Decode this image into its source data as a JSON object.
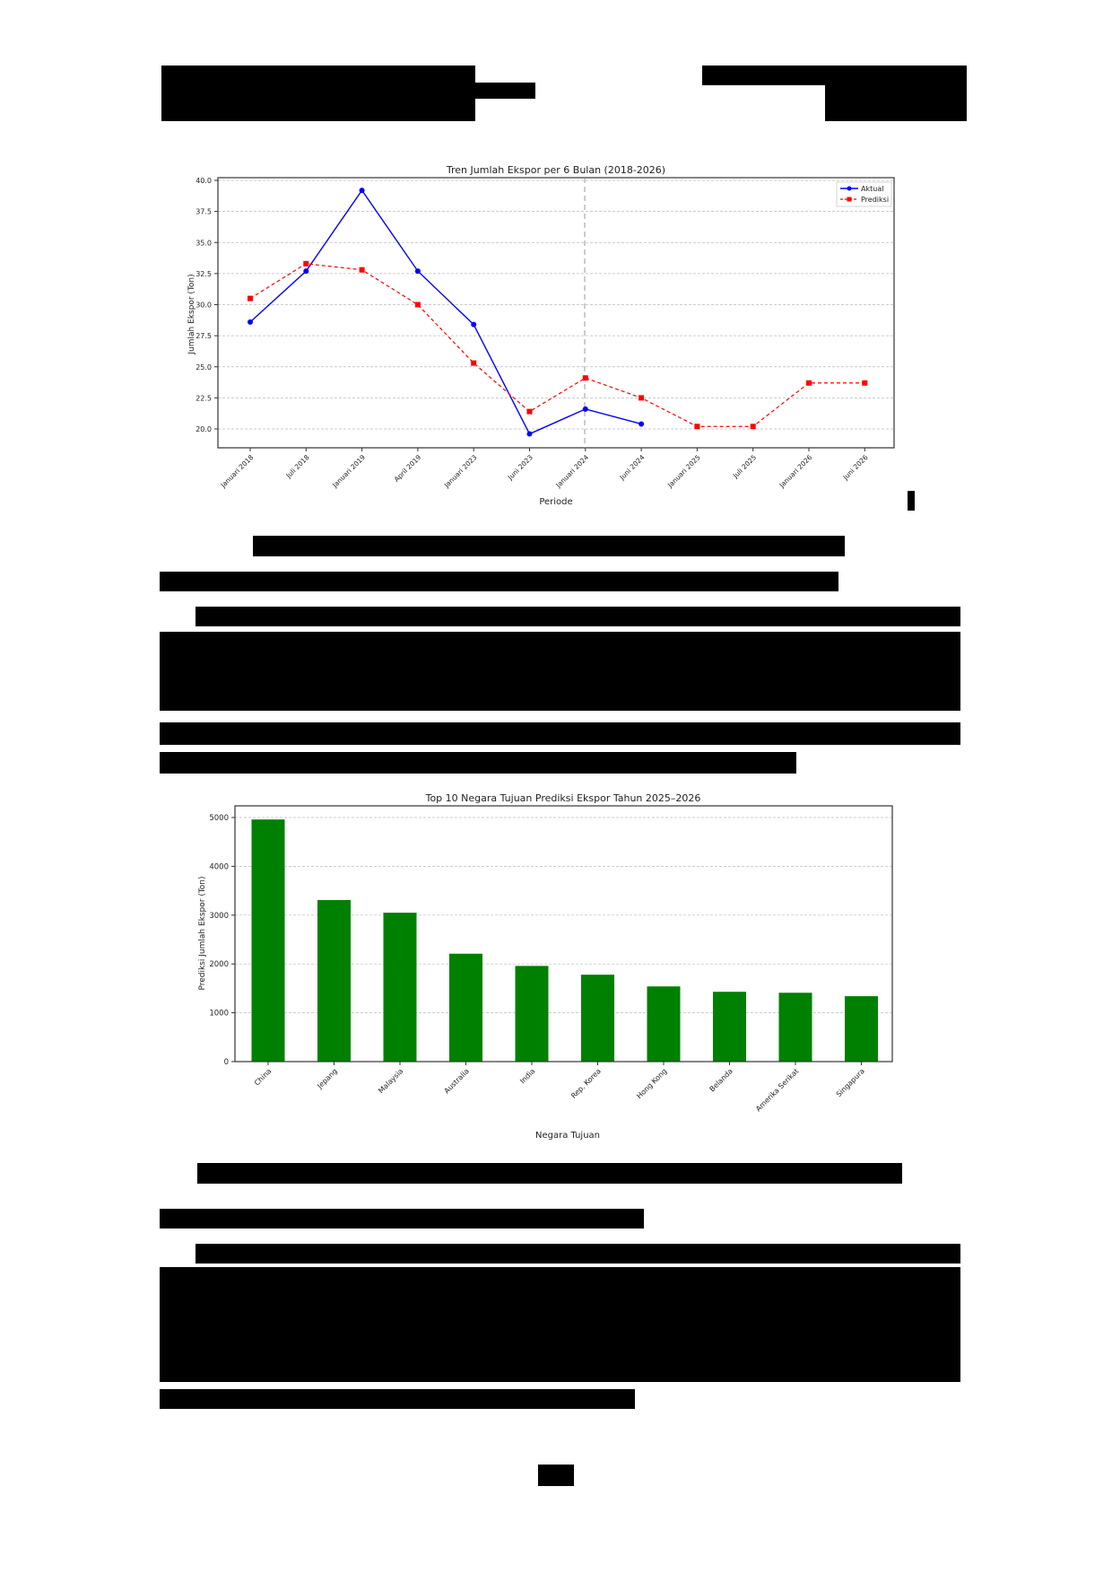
{
  "page": {
    "header_left": "[redacted]",
    "header_right": "[redacted]",
    "figure1_marker": "1",
    "caption1": "[redacted]",
    "section_heading1": "[redacted]",
    "paragraph1": "[redacted]",
    "caption2": "[redacted]",
    "section_heading2": "[redacted]",
    "paragraph2": "[redacted]",
    "page_number": "[redacted]"
  },
  "colors": {
    "actual_line": "#0000ff",
    "predicted_line": "#ff0000",
    "bar_fill": "#008000",
    "grid": "#cccccc",
    "redaction": "#000000"
  },
  "chart_data": [
    {
      "type": "line",
      "title": "Tren Jumlah Ekspor per 6 Bulan (2018-2026)",
      "xlabel": "Periode",
      "ylabel": "Jumlah Ekspor (Ton)",
      "categories": [
        "Januari 2018",
        "Juli 2018",
        "Januari 2019",
        "April 2019",
        "Januari 2023",
        "Juni 2023",
        "Januari 2024",
        "Juni 2024",
        "Januari 2025",
        "Juli 2025",
        "Januari 2026",
        "Juni 2026"
      ],
      "series": [
        {
          "name": "Aktual",
          "color": "#0000ff",
          "style": "solid",
          "marker": "circle",
          "values": [
            28.6,
            32.7,
            39.2,
            32.7,
            28.4,
            19.6,
            21.6,
            20.4,
            null,
            null,
            null,
            null
          ]
        },
        {
          "name": "Prediksi",
          "color": "#ff0000",
          "style": "dashed",
          "marker": "square",
          "values": [
            30.5,
            33.3,
            32.8,
            30.0,
            25.3,
            21.4,
            24.1,
            22.5,
            20.2,
            20.2,
            23.7,
            23.7
          ]
        }
      ],
      "yticks": [
        "40.0",
        "37.5",
        "35.0",
        "32.5",
        "30.0",
        "27.5",
        "25.0",
        "22.5",
        "20.0"
      ],
      "ylim": [
        19.0,
        40.2
      ],
      "vline_at": "Januari 2024",
      "grid": true,
      "legend_position": "upper right"
    },
    {
      "type": "bar",
      "title": "Top 10 Negara Tujuan Prediksi Ekspor Tahun 2025–2026",
      "xlabel": "Negara Tujuan",
      "ylabel": "Prediksi Jumlah Ekspor (Ton)",
      "categories": [
        "China",
        "Jepang",
        "Malaysia",
        "Australia",
        "India",
        "Rep. Korea",
        "Hong Kong",
        "Belanda",
        "Amerika Serikat",
        "Singapura"
      ],
      "values": [
        4960,
        3310,
        3050,
        2210,
        1960,
        1780,
        1540,
        1430,
        1410,
        1340
      ],
      "yticks": [
        "0",
        "1000",
        "2000",
        "3000",
        "4000",
        "5000"
      ],
      "ylim": [
        0,
        5240
      ],
      "grid": true,
      "color": "#008000"
    }
  ]
}
